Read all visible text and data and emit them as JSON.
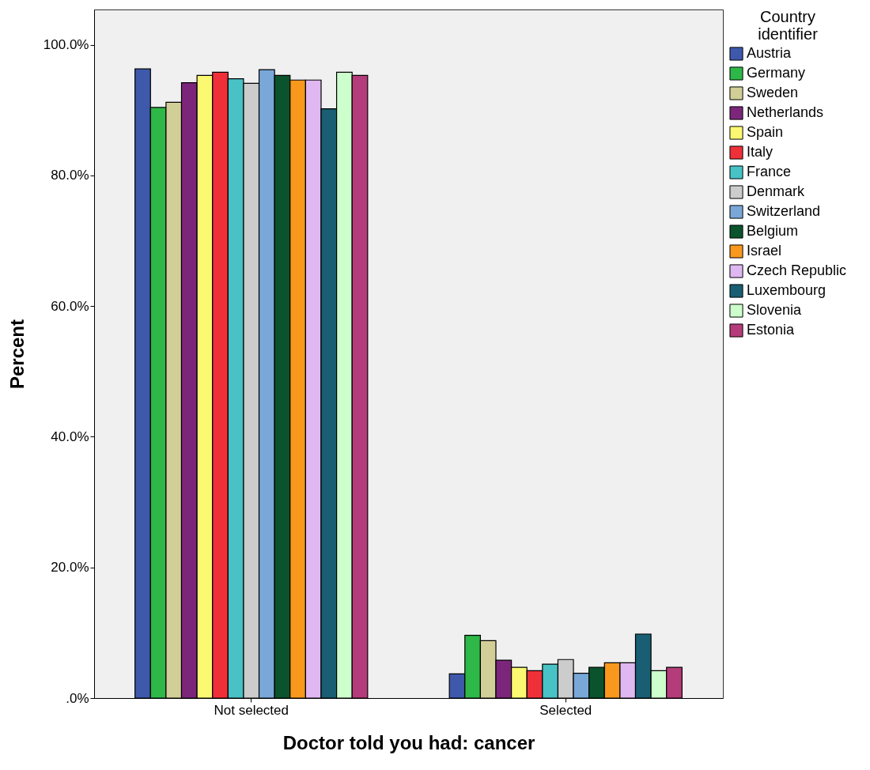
{
  "chart_data": {
    "type": "bar",
    "xlabel": "Doctor told you had: cancer",
    "ylabel": "Percent",
    "legend_title": "Country identifier",
    "categories": [
      "Not selected",
      "Selected"
    ],
    "ylim": [
      0,
      105.4
    ],
    "yticks": [
      {
        "value": 0,
        "label": ".0%"
      },
      {
        "value": 20,
        "label": "20.0%"
      },
      {
        "value": 40,
        "label": "40.0%"
      },
      {
        "value": 60,
        "label": "60.0%"
      },
      {
        "value": 80,
        "label": "80.0%"
      },
      {
        "value": 100,
        "label": "100.0%"
      }
    ],
    "grid": false,
    "legend": "right",
    "series": [
      {
        "name": "Austria",
        "color": "#3e58ac",
        "values": [
          96.3,
          3.7
        ]
      },
      {
        "name": "Germany",
        "color": "#2eb848",
        "values": [
          90.4,
          9.6
        ]
      },
      {
        "name": "Sweden",
        "color": "#d2ce97",
        "values": [
          91.2,
          8.8
        ]
      },
      {
        "name": "Netherlands",
        "color": "#7b267b",
        "values": [
          94.2,
          5.8
        ]
      },
      {
        "name": "Spain",
        "color": "#fbf872",
        "values": [
          95.3,
          4.7
        ]
      },
      {
        "name": "Italy",
        "color": "#ef3038",
        "values": [
          95.8,
          4.2
        ]
      },
      {
        "name": "France",
        "color": "#48c2c5",
        "values": [
          94.8,
          5.2
        ]
      },
      {
        "name": "Denmark",
        "color": "#cccccc",
        "values": [
          94.1,
          5.9
        ]
      },
      {
        "name": "Switzerland",
        "color": "#79a8d8",
        "values": [
          96.2,
          3.8
        ]
      },
      {
        "name": "Belgium",
        "color": "#0a532c",
        "values": [
          95.3,
          4.7
        ]
      },
      {
        "name": "Israel",
        "color": "#f8981d",
        "values": [
          94.6,
          5.4
        ]
      },
      {
        "name": "Czech Republic",
        "color": "#dfb7f1",
        "values": [
          94.6,
          5.4
        ]
      },
      {
        "name": "Luxembourg",
        "color": "#195e73",
        "values": [
          90.2,
          9.8
        ]
      },
      {
        "name": "Slovenia",
        "color": "#ccffcc",
        "values": [
          95.8,
          4.2
        ]
      },
      {
        "name": "Estonia",
        "color": "#b53c7a",
        "values": [
          95.3,
          4.7
        ]
      }
    ]
  }
}
